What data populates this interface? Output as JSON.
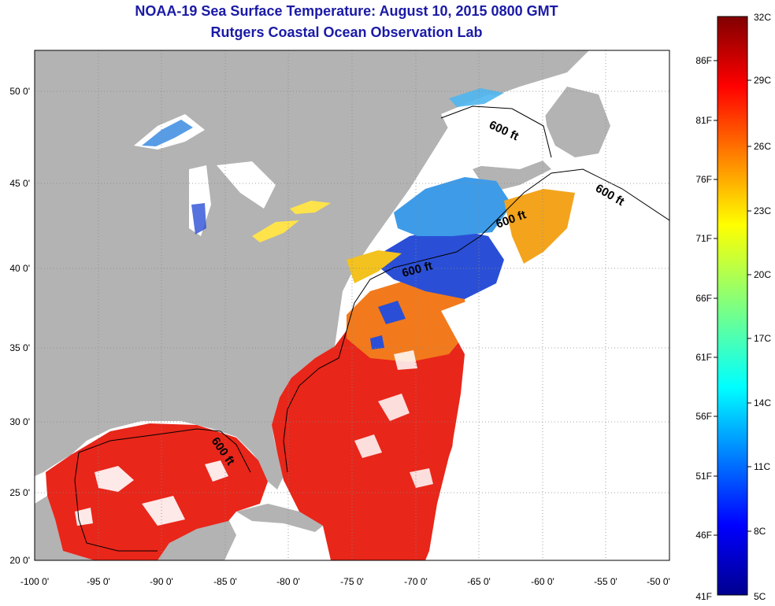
{
  "title": {
    "line1": "NOAA-19 Sea Surface Temperature:  August 10, 2015 0800 GMT",
    "line2": "Rutgers Coastal Ocean Observation Lab"
  },
  "map": {
    "lat_labels": [
      "50 0'",
      "45 0'",
      "40 0'",
      "35 0'",
      "30 0'",
      "25 0'",
      "20 0'"
    ],
    "lon_labels": [
      "-100 0'",
      "-95 0'",
      "-90 0'",
      "-85 0'",
      "-80 0'",
      "-75 0'",
      "-70 0'",
      "-65 0'",
      "-60 0'",
      "-55 0'",
      "-50 0'"
    ],
    "contour_labels": [
      "600 ft",
      "600 ft",
      "600 ft",
      "600 ft",
      "600 ft"
    ],
    "colors": {
      "land": "#b3b3b3",
      "cloud": "#ffffff",
      "warm": "#e8261a",
      "cool": "#2a4fd6"
    }
  },
  "colorbar": {
    "fahrenheit_labels": [
      "86F",
      "81F",
      "76F",
      "71F",
      "66F",
      "61F",
      "56F",
      "51F",
      "46F",
      "41F"
    ],
    "celsius_labels": [
      "32C",
      "29C",
      "26C",
      "23C",
      "20C",
      "17C",
      "14C",
      "11C",
      "8C",
      "5C"
    ]
  }
}
